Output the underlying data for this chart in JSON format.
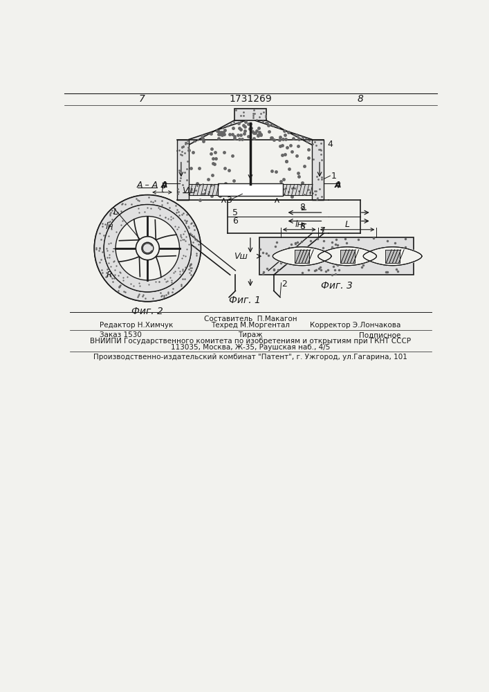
{
  "page_number_left": "7",
  "page_number_right": "8",
  "patent_number": "1731269",
  "fig1_label": "Фиг. 1",
  "fig2_label": "Фиг. 2",
  "fig3_label": "Фиг. 3",
  "fig2_section": "А – А",
  "footer_line1_left": "Редактор Н.Химчук",
  "footer_line1_center1": "Составитель  П.Макагон",
  "footer_line1_center2": "Техред М.Моргентал",
  "footer_line1_right": "Корректор Э.Лончакова",
  "footer_line2_left": "Заказ 1530",
  "footer_line2_center": "Тираж",
  "footer_line2_right": "Подписное",
  "footer_line3": "ВНИИПИ Государственного комитета по изобретениям и открытиям при ГКНТ СССР",
  "footer_line4": "113035, Москва, Ж-35, Раушская наб., 4/5",
  "footer_line5": "Производственно-издательский комбинат \"Патент\", г. Ужгород, ул.Гагарина, 101",
  "bg_color": "#f2f2ee",
  "line_color": "#1a1a1a",
  "dot_color": "#666666"
}
